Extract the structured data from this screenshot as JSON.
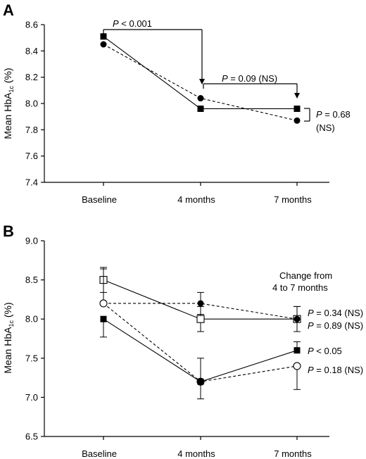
{
  "chart_data": [
    {
      "panel": "A",
      "type": "line",
      "categories": [
        "Baseline",
        "4 months",
        "7 months"
      ],
      "ylabel": "Mean HbA1c (%)",
      "ylabel_main": "Mean HbA",
      "ylabel_sub": "1c",
      "ylabel_unit": " (%)",
      "ylim": [
        7.4,
        8.6
      ],
      "yticks": [
        "7.4",
        "7.6",
        "7.8",
        "8.0",
        "8.2",
        "8.4",
        "8.6"
      ],
      "series": [
        {
          "marker": "filled-square",
          "line": "solid",
          "values": [
            8.51,
            7.96,
            7.96
          ]
        },
        {
          "marker": "filled-circle",
          "line": "dashed",
          "values": [
            8.45,
            8.04,
            7.87
          ]
        }
      ],
      "annotations": [
        {
          "italic": "P",
          "text": " < 0.001"
        },
        {
          "italic": "P",
          "text": " = 0.09 (NS)"
        },
        {
          "italic": "P",
          "text": " = 0.68"
        },
        {
          "text": "(NS)"
        }
      ]
    },
    {
      "panel": "B",
      "type": "line",
      "categories": [
        "Baseline",
        "4 months",
        "7 months"
      ],
      "ylabel": "Mean HbA1c (%)",
      "ylabel_main": "Mean HbA",
      "ylabel_sub": "1c",
      "ylabel_unit": " (%)",
      "ylim": [
        6.5,
        9.0
      ],
      "yticks": [
        "6.5",
        "7.0",
        "7.5",
        "8.0",
        "8.5",
        "9.0"
      ],
      "series": [
        {
          "marker": "open-square",
          "line": "solid",
          "values": [
            8.5,
            8.0,
            8.0
          ],
          "err_low": [
            8.34,
            7.84,
            7.84
          ],
          "err_high": [
            8.66,
            8.16,
            8.16
          ]
        },
        {
          "marker": "filled-circle",
          "line": "dashed",
          "values": [
            8.2,
            8.2,
            8.0
          ],
          "err_low": [
            8.2,
            8.06,
            7.84
          ],
          "err_high": [
            8.2,
            8.34,
            8.16
          ]
        },
        {
          "marker": "open-circle",
          "line": "dashed",
          "values": [
            8.2,
            7.2,
            7.4
          ],
          "err_low": [
            8.2,
            7.2,
            7.1
          ],
          "err_high": [
            8.64,
            7.2,
            7.4
          ]
        },
        {
          "marker": "filled-square",
          "line": "solid",
          "values": [
            8.0,
            7.2,
            7.6
          ],
          "err_low": [
            7.77,
            6.98,
            7.6
          ],
          "err_high": [
            8.0,
            7.5,
            7.71
          ]
        }
      ],
      "legend_title": [
        "Change from",
        "4 to 7 months"
      ],
      "annotations": [
        {
          "italic": "P",
          "text": " = 0.34 (NS)"
        },
        {
          "italic": "P",
          "text": " = 0.89 (NS)"
        },
        {
          "italic": "P",
          "text": " < 0.05"
        },
        {
          "italic": "P",
          "text": " = 0.18 (NS)"
        }
      ]
    }
  ]
}
